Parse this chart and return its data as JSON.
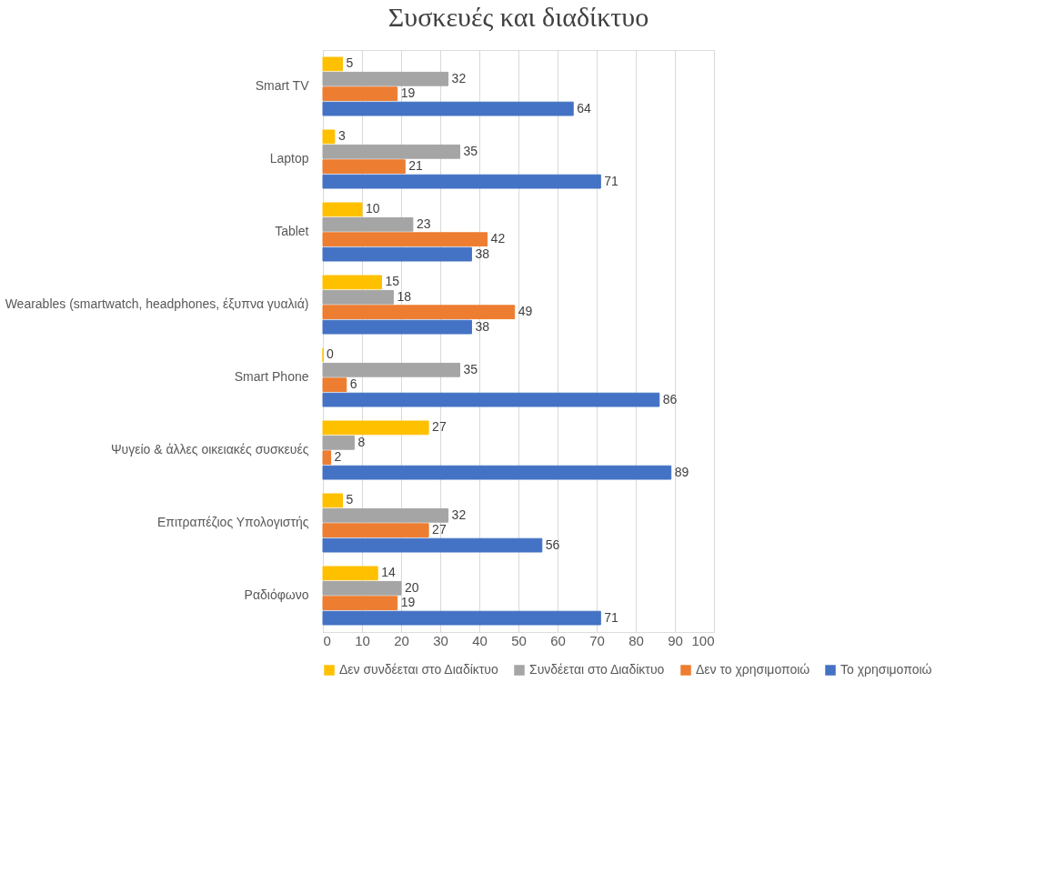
{
  "chart_data": {
    "type": "bar",
    "orientation": "horizontal",
    "title": "Συσκευές και διαδίκτυο",
    "categories": [
      "Smart TV",
      "Laptop",
      "Tablet",
      "Wearables (smartwatch, headphones, έξυπνα γυαλιά)",
      "Smart Phone",
      "Ψυγείο & άλλες οικειακές συσκευές",
      "Επιτραπέζιος Υπολογιστής",
      "Ραδιόφωνο"
    ],
    "series": [
      {
        "name": "Δεν συνδέεται στο Διαδίκτυο",
        "color": "#ffc000",
        "values": [
          5,
          3,
          10,
          15,
          0,
          27,
          5,
          14
        ]
      },
      {
        "name": "Συνδέεται στο Διαδίκτυο",
        "color": "#a5a5a5",
        "values": [
          32,
          35,
          23,
          18,
          35,
          8,
          32,
          20
        ]
      },
      {
        "name": "Δεν το χρησιμοποιώ",
        "color": "#ed7d31",
        "values": [
          19,
          21,
          42,
          49,
          6,
          2,
          27,
          19
        ]
      },
      {
        "name": "Το χρησιμοποιώ",
        "color": "#4472c4",
        "values": [
          64,
          71,
          38,
          38,
          86,
          89,
          56,
          71
        ]
      }
    ],
    "xlim": [
      0,
      100
    ],
    "xticks": [
      0,
      10,
      20,
      30,
      40,
      50,
      60,
      70,
      80,
      90,
      100
    ],
    "grid": "x",
    "legend": "bottom",
    "data_labels": true
  }
}
